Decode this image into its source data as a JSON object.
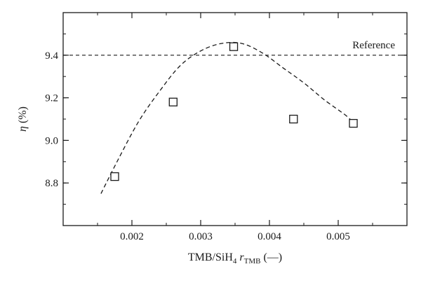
{
  "chart_data": {
    "type": "scatter",
    "xlabel": {
      "prefix": "TMB/SiH",
      "prefix_sub": "4",
      "italic": "r",
      "italic_sub": "TMB",
      "suffix": " (—)"
    },
    "ylabel": {
      "symbol": "η",
      "unit": " (%)"
    },
    "xlim": [
      0.001,
      0.006
    ],
    "ylim": [
      8.6,
      9.6
    ],
    "xticks": [
      0.002,
      0.003,
      0.004,
      0.005
    ],
    "xtick_labels": [
      "0.002",
      "0.003",
      "0.004",
      "0.005"
    ],
    "yticks": [
      8.8,
      9.0,
      9.2,
      9.4
    ],
    "ytick_labels": [
      "8.8",
      "9.0",
      "9.2",
      "9.4"
    ],
    "grid": false,
    "series": [
      {
        "marker": "open-square",
        "x": [
          0.00175,
          0.0026,
          0.00348,
          0.00435,
          0.00522
        ],
        "y": [
          8.83,
          9.18,
          9.44,
          9.1,
          9.08
        ]
      }
    ],
    "fit_curve": {
      "style": "dashed",
      "x": [
        0.00155,
        0.0018,
        0.0021,
        0.0024,
        0.0027,
        0.003,
        0.0033,
        0.0036,
        0.0039,
        0.0042,
        0.0045,
        0.0048,
        0.0051,
        0.0052
      ],
      "y": [
        8.75,
        8.91,
        9.09,
        9.23,
        9.35,
        9.42,
        9.455,
        9.455,
        9.41,
        9.34,
        9.27,
        9.19,
        9.12,
        9.09
      ]
    },
    "reference_line": {
      "style": "dashed",
      "y": 9.4,
      "label": "Reference"
    }
  }
}
